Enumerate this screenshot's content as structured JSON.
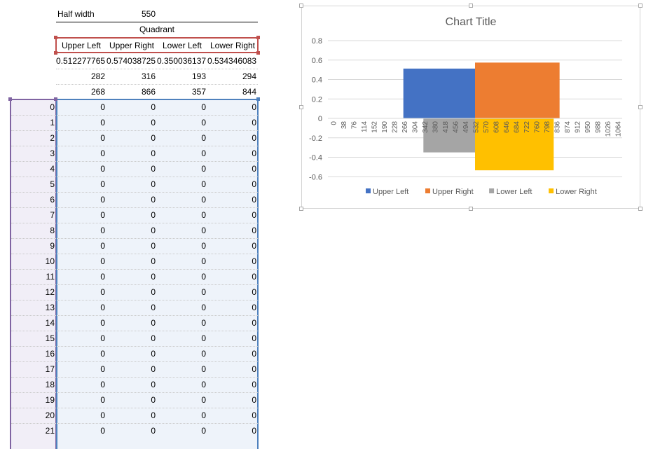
{
  "sheet": {
    "half_width_label": "Half width",
    "half_width_value": "550",
    "quadrant_label": "Quadrant",
    "headers": [
      "Upper Left",
      "Upper Right",
      "Lower Left",
      "Lower Right"
    ],
    "summary_rows": [
      [
        "0.512277765",
        "0.574038725",
        "0.350036137",
        "0.534346083"
      ],
      [
        "282",
        "316",
        "193",
        "294"
      ],
      [
        "268",
        "866",
        "357",
        "844"
      ]
    ],
    "row_labels": [
      "0",
      "1",
      "2",
      "3",
      "4",
      "5",
      "6",
      "7",
      "8",
      "9",
      "10",
      "11",
      "12",
      "13",
      "14",
      "15",
      "16",
      "17",
      "18",
      "19",
      "20",
      "21"
    ],
    "row_values": [
      "0",
      "0",
      "0",
      "0"
    ]
  },
  "colors": {
    "upper_left": "#4472C4",
    "upper_right": "#ED7D31",
    "lower_left": "#A5A5A5",
    "lower_right": "#FFC000",
    "selection_red": "#C0504D",
    "selection_purple": "#8064A2",
    "selection_blue": "#4F81BD"
  },
  "chart_data": {
    "type": "bar",
    "title": "Chart Title",
    "x_tick_labels": [
      "0",
      "38",
      "76",
      "114",
      "152",
      "190",
      "228",
      "266",
      "304",
      "342",
      "380",
      "418",
      "456",
      "494",
      "532",
      "570",
      "608",
      "646",
      "684",
      "722",
      "760",
      "798",
      "836",
      "874",
      "912",
      "950",
      "988",
      "1026",
      "1064"
    ],
    "x_range": [
      0,
      1100
    ],
    "ylim": [
      -0.6,
      0.8
    ],
    "yticks": [
      "0.8",
      "0.6",
      "0.4",
      "0.2",
      "0",
      "-0.2",
      "-0.4",
      "-0.6"
    ],
    "grid": true,
    "legend_position": "bottom",
    "series": [
      {
        "name": "Upper Left",
        "x_start": 282,
        "x_end": 550,
        "value": 0.512277765
      },
      {
        "name": "Upper Right",
        "x_start": 550,
        "x_end": 866,
        "value": 0.574038725
      },
      {
        "name": "Lower Left",
        "x_start": 357,
        "x_end": 550,
        "value": -0.350036137
      },
      {
        "name": "Lower Right",
        "x_start": 550,
        "x_end": 844,
        "value": -0.534346083
      }
    ]
  }
}
